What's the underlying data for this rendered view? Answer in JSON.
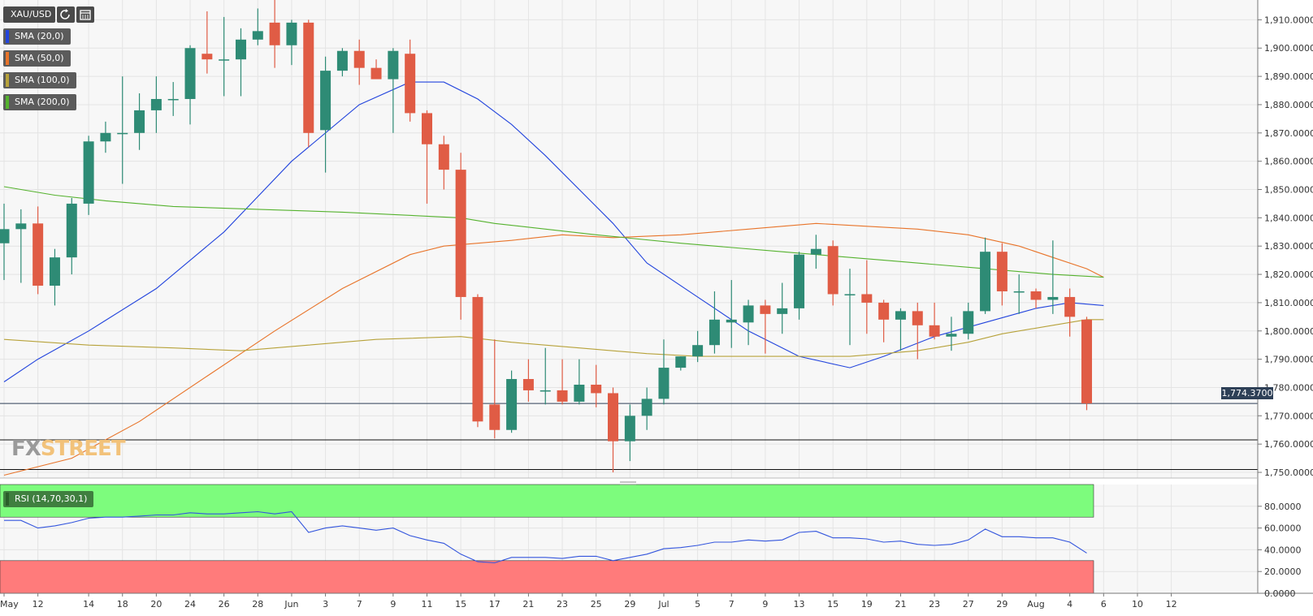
{
  "toolbar": {
    "symbol": "XAU/USD",
    "icons": [
      "refresh-icon",
      "calendar-icon"
    ]
  },
  "indicators": [
    {
      "label": "SMA (20,0)",
      "color": "#2244dd"
    },
    {
      "label": "SMA (50,0)",
      "color": "#e8742a"
    },
    {
      "label": "SMA (100,0)",
      "color": "#b7a23a"
    },
    {
      "label": "SMA (200,0)",
      "color": "#55b22e"
    }
  ],
  "rsi_label": "RSI (14,70,30,1)",
  "logo": {
    "part1": "FX",
    "part2": "STREET"
  },
  "last_price": "1,774.3700",
  "colors": {
    "up": "#2e8b75",
    "down": "#e05c45",
    "rsi_line": "#3355dd",
    "overbought": "#7dfc7d",
    "oversold": "#ff7b7b"
  },
  "chart_data": {
    "type": "candlestick",
    "price_axis": {
      "ylim": [
        1748,
        1917
      ],
      "ticks": [
        "1,750.0000",
        "1,760.0000",
        "1,770.0000",
        "1,780.0000",
        "1,790.0000",
        "1,800.0000",
        "1,810.0000",
        "1,820.0000",
        "1,830.0000",
        "1,840.0000",
        "1,850.0000",
        "1,860.0000",
        "1,870.0000",
        "1,880.0000",
        "1,890.0000",
        "1,900.0000",
        "1,910.0000"
      ],
      "tick_values": [
        1750,
        1760,
        1770,
        1780,
        1790,
        1800,
        1810,
        1820,
        1830,
        1840,
        1850,
        1860,
        1870,
        1880,
        1890,
        1900,
        1910
      ]
    },
    "rsi_axis": {
      "ylim": [
        0,
        100
      ],
      "ticks": [
        "0.0000",
        "20.0000",
        "40.0000",
        "60.0000",
        "80.0000"
      ],
      "tick_values": [
        0,
        20,
        40,
        60,
        80
      ],
      "overbought": 70,
      "oversold": 30
    },
    "x_tick_labels": [
      "May",
      "12",
      "14",
      "18",
      "20",
      "24",
      "26",
      "28",
      "Jun",
      "3",
      "7",
      "9",
      "11",
      "15",
      "17",
      "21",
      "23",
      "25",
      "29",
      "Jul",
      "5",
      "7",
      "9",
      "13",
      "15",
      "19",
      "21",
      "23",
      "27",
      "29",
      "Aug",
      "4",
      "6",
      "10",
      "12"
    ],
    "x_tick_index": [
      0,
      2,
      5,
      7,
      9,
      11,
      13,
      15,
      17,
      19,
      21,
      23,
      25,
      27,
      29,
      31,
      33,
      35,
      37,
      39,
      41,
      43,
      45,
      47,
      49,
      51,
      53,
      55,
      57,
      59,
      61,
      63,
      65,
      67,
      69
    ],
    "horizontal_lines": [
      1774.37,
      1761.5,
      1751.0
    ],
    "ohlc": [
      [
        1831,
        1845,
        1818,
        1836
      ],
      [
        1836,
        1843,
        1817,
        1838
      ],
      [
        1838,
        1844,
        1813,
        1816
      ],
      [
        1816,
        1829,
        1809,
        1826
      ],
      [
        1826,
        1847,
        1820,
        1845
      ],
      [
        1845,
        1869,
        1841,
        1867
      ],
      [
        1867,
        1874,
        1863,
        1870
      ],
      [
        1870,
        1890,
        1852,
        1870
      ],
      [
        1870,
        1884,
        1864,
        1878
      ],
      [
        1878,
        1890,
        1870,
        1882
      ],
      [
        1882,
        1888,
        1876,
        1882
      ],
      [
        1882,
        1901,
        1873,
        1900
      ],
      [
        1898,
        1913,
        1891,
        1896
      ],
      [
        1896,
        1911,
        1883,
        1896
      ],
      [
        1896,
        1907,
        1883,
        1903
      ],
      [
        1903,
        1914,
        1901,
        1906
      ],
      [
        1909,
        1917,
        1893,
        1901
      ],
      [
        1901,
        1910,
        1894,
        1909
      ],
      [
        1909,
        1910,
        1865,
        1870
      ],
      [
        1871,
        1897,
        1856,
        1892
      ],
      [
        1892,
        1900,
        1890,
        1899
      ],
      [
        1899,
        1903,
        1887,
        1893
      ],
      [
        1893,
        1896,
        1890,
        1889
      ],
      [
        1889,
        1900,
        1870,
        1899
      ],
      [
        1898,
        1903,
        1874,
        1877
      ],
      [
        1877,
        1878,
        1845,
        1866
      ],
      [
        1866,
        1869,
        1850,
        1857
      ],
      [
        1857,
        1863,
        1804,
        1812
      ],
      [
        1812,
        1813,
        1766,
        1768
      ],
      [
        1774,
        1797,
        1762,
        1765
      ],
      [
        1765,
        1786,
        1764,
        1783
      ],
      [
        1783,
        1790,
        1775,
        1779
      ],
      [
        1779,
        1794,
        1774,
        1779
      ],
      [
        1779,
        1790,
        1774,
        1775
      ],
      [
        1775,
        1790,
        1774,
        1781
      ],
      [
        1781,
        1788,
        1773,
        1778
      ],
      [
        1778,
        1780,
        1750,
        1761
      ],
      [
        1761,
        1774,
        1754,
        1770
      ],
      [
        1770,
        1780,
        1765,
        1776
      ],
      [
        1776,
        1797,
        1774,
        1787
      ],
      [
        1787,
        1791,
        1786,
        1791
      ],
      [
        1791,
        1800,
        1789,
        1795
      ],
      [
        1795,
        1814,
        1792,
        1804
      ],
      [
        1803,
        1818,
        1794,
        1804
      ],
      [
        1803,
        1811,
        1795,
        1809
      ],
      [
        1809,
        1811,
        1792,
        1806
      ],
      [
        1806,
        1817,
        1799,
        1808
      ],
      [
        1808,
        1828,
        1804,
        1827
      ],
      [
        1827,
        1834,
        1822,
        1829
      ],
      [
        1830,
        1832,
        1809,
        1813
      ],
      [
        1813,
        1822,
        1795,
        1813
      ],
      [
        1813,
        1825,
        1799,
        1810
      ],
      [
        1810,
        1811,
        1796,
        1804
      ],
      [
        1804,
        1808,
        1793,
        1807
      ],
      [
        1807,
        1810,
        1790,
        1802
      ],
      [
        1802,
        1810,
        1797,
        1798
      ],
      [
        1798,
        1805,
        1793,
        1799
      ],
      [
        1799,
        1810,
        1797,
        1807
      ],
      [
        1807,
        1833,
        1806,
        1828
      ],
      [
        1828,
        1831,
        1809,
        1814
      ],
      [
        1814,
        1820,
        1806,
        1814
      ],
      [
        1814,
        1815,
        1808,
        1811
      ],
      [
        1811,
        1832,
        1806,
        1812
      ],
      [
        1812,
        1815,
        1798,
        1805
      ],
      [
        1804,
        1805,
        1772,
        1774.37
      ]
    ],
    "series": [
      {
        "name": "SMA (20,0)",
        "color": "#2244dd",
        "values": [
          [
            0,
            1782
          ],
          [
            2,
            1790
          ],
          [
            5,
            1800
          ],
          [
            9,
            1815
          ],
          [
            13,
            1835
          ],
          [
            17,
            1860
          ],
          [
            21,
            1880
          ],
          [
            24,
            1888
          ],
          [
            26,
            1888
          ],
          [
            28,
            1882
          ],
          [
            30,
            1873
          ],
          [
            32,
            1862
          ],
          [
            36,
            1838
          ],
          [
            38,
            1824
          ],
          [
            41,
            1812
          ],
          [
            44,
            1800
          ],
          [
            47,
            1791
          ],
          [
            50,
            1787
          ],
          [
            52,
            1791
          ],
          [
            55,
            1798
          ],
          [
            58,
            1803
          ],
          [
            61,
            1808
          ],
          [
            63,
            1810
          ],
          [
            65,
            1809
          ]
        ]
      },
      {
        "name": "SMA (50,0)",
        "color": "#e8742a",
        "values": [
          [
            0,
            1749
          ],
          [
            4,
            1755
          ],
          [
            8,
            1768
          ],
          [
            12,
            1784
          ],
          [
            16,
            1800
          ],
          [
            20,
            1815
          ],
          [
            24,
            1827
          ],
          [
            26,
            1830
          ],
          [
            30,
            1832
          ],
          [
            33,
            1834
          ],
          [
            36,
            1833
          ],
          [
            40,
            1834
          ],
          [
            44,
            1836
          ],
          [
            48,
            1838
          ],
          [
            51,
            1837
          ],
          [
            54,
            1836
          ],
          [
            57,
            1834
          ],
          [
            60,
            1830
          ],
          [
            62,
            1826
          ],
          [
            64,
            1822
          ],
          [
            65,
            1819
          ]
        ]
      },
      {
        "name": "SMA (100,0)",
        "color": "#b7a23a",
        "values": [
          [
            0,
            1797
          ],
          [
            5,
            1795
          ],
          [
            10,
            1794
          ],
          [
            14,
            1793
          ],
          [
            18,
            1795
          ],
          [
            22,
            1797
          ],
          [
            27,
            1798
          ],
          [
            30,
            1796
          ],
          [
            34,
            1794
          ],
          [
            38,
            1792
          ],
          [
            41,
            1791
          ],
          [
            45,
            1791
          ],
          [
            50,
            1791
          ],
          [
            54,
            1793
          ],
          [
            57,
            1796
          ],
          [
            59,
            1799
          ],
          [
            62,
            1802
          ],
          [
            64,
            1804
          ],
          [
            65,
            1804
          ]
        ]
      },
      {
        "name": "SMA (200,0)",
        "color": "#55b22e",
        "values": [
          [
            0,
            1851
          ],
          [
            3,
            1848
          ],
          [
            6,
            1846
          ],
          [
            10,
            1844
          ],
          [
            15,
            1843
          ],
          [
            20,
            1842
          ],
          [
            27,
            1840
          ],
          [
            29,
            1838
          ],
          [
            35,
            1834
          ],
          [
            40,
            1831
          ],
          [
            46,
            1828
          ],
          [
            52,
            1825
          ],
          [
            58,
            1822
          ],
          [
            62,
            1820
          ],
          [
            65,
            1819
          ]
        ]
      },
      {
        "name": "RSI (14,70,30,1)",
        "color": "#3355dd",
        "values": [
          [
            0,
            67
          ],
          [
            1,
            67
          ],
          [
            2,
            60
          ],
          [
            3,
            62
          ],
          [
            4,
            65
          ],
          [
            5,
            69
          ],
          [
            6,
            70
          ],
          [
            7,
            70
          ],
          [
            8,
            71
          ],
          [
            9,
            72
          ],
          [
            10,
            72
          ],
          [
            11,
            74
          ],
          [
            12,
            73
          ],
          [
            13,
            73
          ],
          [
            14,
            74
          ],
          [
            15,
            75
          ],
          [
            16,
            73
          ],
          [
            17,
            75
          ],
          [
            18,
            56
          ],
          [
            19,
            60
          ],
          [
            20,
            62
          ],
          [
            21,
            60
          ],
          [
            22,
            58
          ],
          [
            23,
            60
          ],
          [
            24,
            53
          ],
          [
            25,
            49
          ],
          [
            26,
            46
          ],
          [
            27,
            36
          ],
          [
            28,
            29
          ],
          [
            29,
            28
          ],
          [
            30,
            33
          ],
          [
            31,
            33
          ],
          [
            32,
            33
          ],
          [
            33,
            32
          ],
          [
            34,
            34
          ],
          [
            35,
            34
          ],
          [
            36,
            30
          ],
          [
            37,
            33
          ],
          [
            38,
            36
          ],
          [
            39,
            41
          ],
          [
            40,
            42
          ],
          [
            41,
            44
          ],
          [
            42,
            47
          ],
          [
            43,
            47
          ],
          [
            44,
            49
          ],
          [
            45,
            48
          ],
          [
            46,
            49
          ],
          [
            47,
            56
          ],
          [
            48,
            57
          ],
          [
            49,
            51
          ],
          [
            50,
            51
          ],
          [
            51,
            50
          ],
          [
            52,
            47
          ],
          [
            53,
            48
          ],
          [
            54,
            45
          ],
          [
            55,
            44
          ],
          [
            56,
            45
          ],
          [
            57,
            49
          ],
          [
            58,
            59
          ],
          [
            59,
            52
          ],
          [
            60,
            52
          ],
          [
            61,
            51
          ],
          [
            62,
            51
          ],
          [
            63,
            47
          ],
          [
            64,
            37
          ]
        ]
      }
    ]
  }
}
